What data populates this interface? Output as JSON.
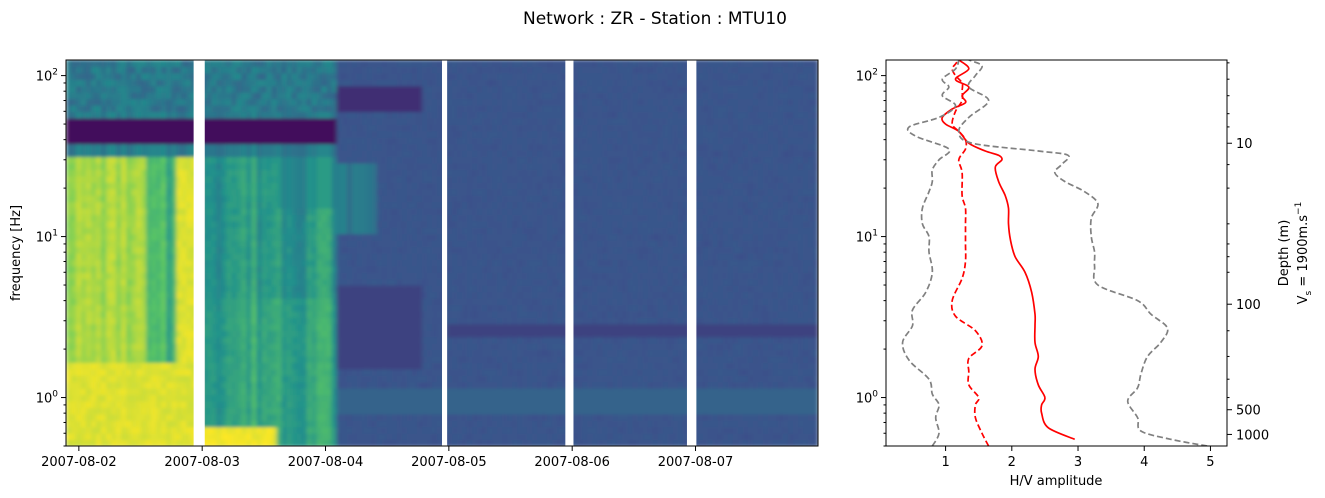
{
  "title": "Network : ZR - Station : MTU10",
  "colors": {
    "viridis_dark": "#440154",
    "viridis_bg": "#3b528b",
    "viridis_teal": "#21918c",
    "viridis_green": "#5ec962",
    "viridis_yellow": "#fde725",
    "hv_median": "#ff0000",
    "hv_bounds": "#808080"
  },
  "chart_data": [
    {
      "type": "heatmap",
      "ylabel": "frequency [Hz]",
      "y_scale": "log",
      "ylim": [
        0.5,
        125
      ],
      "xlim": [
        "2007-08-01 21:30",
        "2007-08-07 23:50"
      ],
      "y_ticks": [
        {
          "v": 1,
          "label": "10^0"
        },
        {
          "v": 10,
          "label": "10^1"
        },
        {
          "v": 100,
          "label": "10^2"
        }
      ],
      "x_ticks": [
        "2007-08-02",
        "2007-08-03",
        "2007-08-04",
        "2007-08-05",
        "2007-08-06",
        "2007-08-07"
      ],
      "data_gaps": [
        [
          "2007-08-02 22:20",
          "2007-08-03 00:30"
        ],
        [
          "2007-08-04 22:40",
          "2007-08-04 23:40"
        ],
        [
          "2007-08-05 22:40",
          "2007-08-06 00:15"
        ],
        [
          "2007-08-06 22:20",
          "2007-08-07 00:10"
        ]
      ],
      "colormap": "viridis"
    },
    {
      "type": "line",
      "xlabel": "H/V amplitude",
      "xlim": [
        0.1,
        5.25
      ],
      "x_ticks": [
        1,
        2,
        3,
        4,
        5
      ],
      "y_scale": "log",
      "ylim": [
        0.5,
        125
      ],
      "y_ticks": [
        {
          "v": 1,
          "label": "10^0"
        },
        {
          "v": 10,
          "label": "10^1"
        },
        {
          "v": 100,
          "label": "10^2"
        }
      ],
      "secondary_y": {
        "label": "Depth (m)",
        "label2_base": "V",
        "label2_sub": "s",
        "label2_rest": " = 1900m.s",
        "label2_sup": "−1",
        "ticks": [
          "10",
          "100",
          "500",
          "1000"
        ]
      },
      "series": [
        {
          "style": "solid",
          "color": "#ff0000",
          "x": [
            2.95,
            2.55,
            2.45,
            2.45,
            2.5,
            2.4,
            2.35,
            2.4,
            2.35,
            2.35,
            2.35,
            2.3,
            2.2,
            2.05,
            1.98,
            1.95,
            1.95,
            1.9,
            1.8,
            1.75,
            1.85,
            1.8,
            1.6,
            1.35,
            1.2,
            1.0,
            0.95,
            1.1,
            1.3,
            1.25,
            1.35,
            1.15,
            1.35,
            1.2
          ],
          "y": [
            0.55,
            0.65,
            0.8,
            0.9,
            1.0,
            1.2,
            1.5,
            1.8,
            2.2,
            2.8,
            3.3,
            4.5,
            6.0,
            7.5,
            9.5,
            12,
            15,
            18,
            22,
            27,
            30,
            32,
            34,
            38,
            45,
            50,
            55,
            62,
            68,
            75,
            85,
            95,
            110,
            125
          ]
        },
        {
          "style": "dashed",
          "color": "#ff0000",
          "x": [
            1.65,
            1.55,
            1.45,
            1.45,
            1.5,
            1.35,
            1.35,
            1.35,
            1.55,
            1.45,
            1.15,
            1.1,
            1.25,
            1.3,
            1.3,
            1.3,
            1.3,
            1.25,
            1.25,
            1.2,
            1.3,
            1.3,
            1.2,
            1.1,
            1.15,
            1.25,
            1.25,
            1.25,
            1.15,
            1.1,
            1.15,
            1.2
          ],
          "y": [
            0.5,
            0.6,
            0.75,
            0.9,
            1.0,
            1.2,
            1.45,
            1.75,
            2.1,
            2.6,
            3.2,
            4.0,
            5.5,
            7.0,
            9.0,
            12,
            15,
            18,
            25,
            30,
            35,
            40,
            45,
            50,
            60,
            70,
            80,
            90,
            100,
            110,
            118,
            125
          ]
        },
        {
          "style": "dashed",
          "color": "#808080",
          "x": [
            0.8,
            0.9,
            0.85,
            0.9,
            0.8,
            0.75,
            0.45,
            0.35,
            0.5,
            0.5,
            0.7,
            0.8,
            0.75,
            0.75,
            0.65,
            0.65,
            0.75,
            0.8,
            0.8,
            0.9,
            1.05,
            0.55,
            0.45,
            0.9,
            1.15,
            0.95,
            1.05,
            0.95,
            1.15,
            1.2
          ],
          "y": [
            0.5,
            0.6,
            0.75,
            0.9,
            1.05,
            1.3,
            1.7,
            2.2,
            2.8,
            3.5,
            4.5,
            6.0,
            8.0,
            10,
            12,
            15,
            19,
            22,
            26,
            30,
            35,
            42,
            48,
            55,
            65,
            75,
            85,
            95,
            110,
            125
          ]
        },
        {
          "style": "dashed",
          "color": "#808080",
          "x": [
            4.95,
            4.4,
            3.95,
            3.9,
            3.75,
            3.9,
            3.95,
            4.05,
            4.25,
            4.35,
            4.1,
            3.9,
            3.3,
            3.25,
            3.25,
            3.2,
            3.2,
            3.3,
            3.1,
            2.8,
            2.65,
            2.75,
            2.85,
            2.4,
            1.4,
            1.2,
            1.35,
            1.65,
            1.35,
            1.45,
            1.55,
            1.35
          ],
          "y": [
            0.5,
            0.55,
            0.62,
            0.75,
            0.95,
            1.15,
            1.4,
            1.8,
            2.2,
            2.7,
            3.3,
            4.0,
            5.0,
            6.5,
            8.0,
            10,
            13,
            16,
            19,
            22,
            25,
            28,
            32,
            34,
            38,
            45,
            55,
            70,
            85,
            100,
            115,
            125
          ]
        }
      ]
    }
  ]
}
